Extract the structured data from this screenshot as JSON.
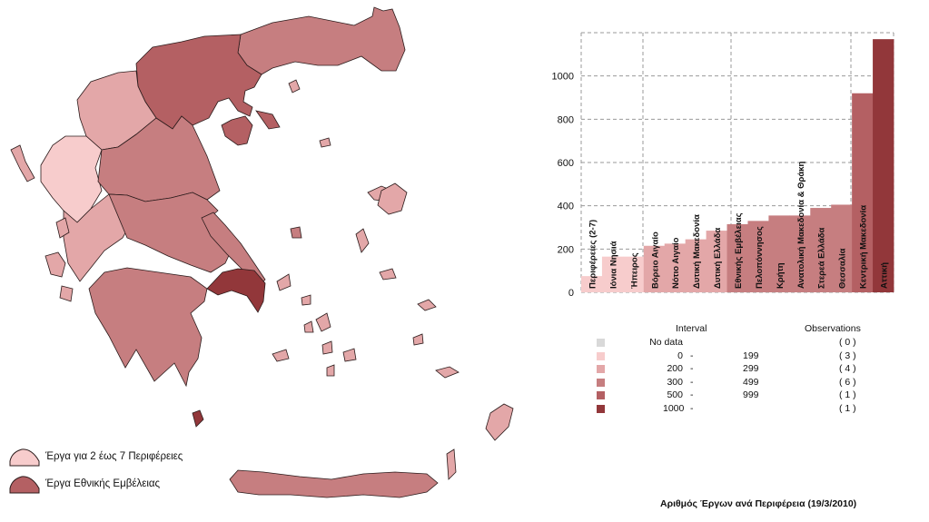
{
  "map_legend": [
    {
      "label": "Έργα για 2 έως 7 Περιφέρειες",
      "color": "#f7cccc"
    },
    {
      "label": "Έργα Εθνικής Εμβέλειας",
      "color": "#b46063"
    }
  ],
  "chart_data": {
    "type": "bar",
    "categories": [
      "Περιφέρειες (2-7)",
      "Ιόνια Νησιά",
      "Ήπειρος",
      "Βόρειο Αιγαίο",
      "Νότιο Αιγαίο",
      "Δυτική Μακεδονία",
      "Δυτική Ελλάδα",
      "Εθνικής Εμβέλειας",
      "Πελοπόννησος",
      "Κρήτη",
      "Ανατολική Μακεδονία & Θράκη",
      "Στερεά Ελλάδα",
      "Θεσσαλία",
      "Κεντρική Μακεδονία",
      "Αττική"
    ],
    "values": [
      75,
      165,
      165,
      215,
      225,
      245,
      285,
      315,
      330,
      355,
      355,
      390,
      405,
      920,
      1170
    ],
    "yticks": [
      "0",
      "200",
      "400",
      "600",
      "800",
      "1000"
    ],
    "ylim": [
      0,
      1200
    ],
    "grid": true
  },
  "classes": {
    "interval_header": "Interval",
    "observations_header": "Observations",
    "rows": [
      {
        "from": "No data",
        "dash": "",
        "to": "",
        "count": "( 0 )",
        "color": "#d9d9d9"
      },
      {
        "from": "0",
        "dash": "-",
        "to": "199",
        "count": "( 3 )",
        "color": "#f7cccc"
      },
      {
        "from": "200",
        "dash": "-",
        "to": "299",
        "count": "( 4 )",
        "color": "#e3a7a8"
      },
      {
        "from": "300",
        "dash": "-",
        "to": "499",
        "count": "( 6 )",
        "color": "#c67e80"
      },
      {
        "from": "500",
        "dash": "-",
        "to": "999",
        "count": "( 1 )",
        "color": "#b46063"
      },
      {
        "from": "1000",
        "dash": "-",
        "to": "",
        "count": "( 1 )",
        "color": "#92373a"
      }
    ]
  },
  "caption": "Αριθμός Έργων ανά Περιφέρεια (19/3/2010)"
}
